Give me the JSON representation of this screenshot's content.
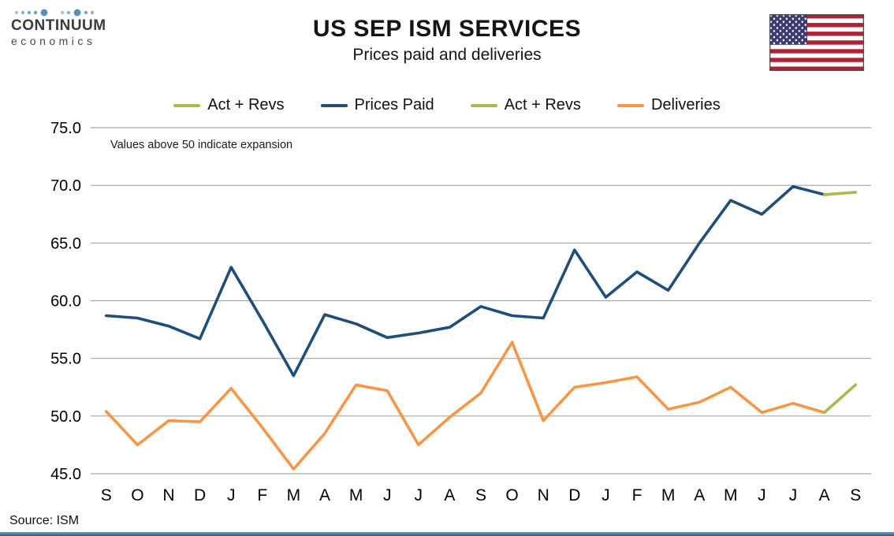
{
  "branding": {
    "logo_line1": "CONTINUUM",
    "logo_line2": "economics"
  },
  "header": {
    "title": "US SEP ISM SERVICES",
    "subtitle": "Prices paid and deliveries"
  },
  "legend": [
    {
      "label": "Act + Revs",
      "color": "#a2bd4a"
    },
    {
      "label": "Prices Paid",
      "color": "#1f4e79"
    },
    {
      "label": "Act + Revs",
      "color": "#a2bd4a"
    },
    {
      "label": "Deliveries",
      "color": "#f79646"
    }
  ],
  "annotation": "Values above 50 indicate expansion",
  "source": "Source: ISM",
  "colors": {
    "prices_paid": "#1f4e79",
    "deliveries": "#f79646",
    "act_revs": "#a2bd4a",
    "gridline": "#a6a6a6",
    "footer_bar": "#2e5a86"
  },
  "chart_data": {
    "type": "line",
    "title": "US SEP ISM SERVICES — Prices paid and deliveries",
    "xlabel": "",
    "ylabel": "",
    "ylim": [
      45,
      75
    ],
    "ytick_step": 5,
    "grid": true,
    "legend_position": "top",
    "categories": [
      "S",
      "O",
      "N",
      "D",
      "J",
      "F",
      "M",
      "A",
      "M",
      "J",
      "J",
      "A",
      "S",
      "O",
      "N",
      "D",
      "J",
      "F",
      "M",
      "A",
      "M",
      "J",
      "J",
      "A",
      "S"
    ],
    "series": [
      {
        "name": "Deliveries",
        "color": "#f79646",
        "values": [
          50.4,
          47.5,
          49.6,
          49.5,
          52.4,
          49.0,
          45.4,
          48.5,
          52.7,
          52.2,
          47.5,
          49.9,
          52.0,
          56.4,
          49.6,
          52.5,
          52.9,
          53.4,
          50.6,
          51.2,
          52.5,
          50.3,
          51.1,
          50.3,
          null
        ]
      },
      {
        "name": "Act + Revs (Deliveries)",
        "color": "#a2bd4a",
        "values": [
          null,
          null,
          null,
          null,
          null,
          null,
          null,
          null,
          null,
          null,
          null,
          null,
          null,
          null,
          null,
          null,
          null,
          null,
          null,
          null,
          null,
          null,
          null,
          50.3,
          52.7
        ]
      },
      {
        "name": "Prices Paid",
        "color": "#1f4e79",
        "values": [
          58.7,
          58.5,
          57.8,
          56.7,
          62.9,
          58.3,
          53.5,
          58.8,
          58.0,
          56.8,
          57.2,
          57.7,
          59.5,
          58.7,
          58.5,
          64.4,
          60.3,
          62.5,
          60.9,
          65.0,
          68.7,
          67.5,
          69.9,
          69.2,
          null
        ]
      },
      {
        "name": "Act + Revs (Prices Paid)",
        "color": "#a2bd4a",
        "values": [
          null,
          null,
          null,
          null,
          null,
          null,
          null,
          null,
          null,
          null,
          null,
          null,
          null,
          null,
          null,
          null,
          null,
          null,
          null,
          null,
          null,
          null,
          null,
          69.2,
          69.4
        ]
      }
    ]
  }
}
